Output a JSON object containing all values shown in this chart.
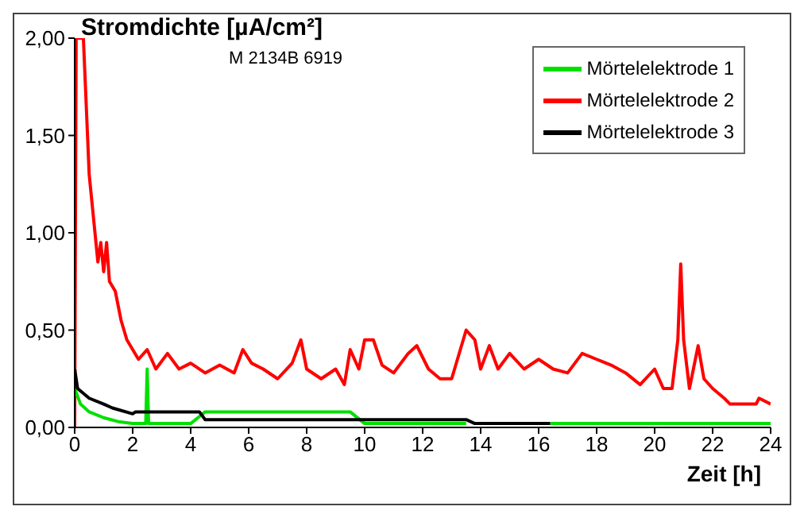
{
  "chart_data": {
    "type": "line",
    "title": "Stromdichte [µA/cm²]",
    "xlabel": "Zeit [h]",
    "annotations": [
      "M 2134B 6919"
    ],
    "xlim": [
      0,
      24
    ],
    "xticks": [
      0,
      2,
      4,
      6,
      8,
      10,
      12,
      14,
      16,
      18,
      20,
      22,
      24
    ],
    "ylim": [
      0,
      2
    ],
    "yticks": [
      {
        "value": 0,
        "label": "0,00"
      },
      {
        "value": 0.5,
        "label": "0,50"
      },
      {
        "value": 1,
        "label": "1,00"
      },
      {
        "value": 1.5,
        "label": "1,50"
      },
      {
        "value": 2,
        "label": "2,00"
      }
    ],
    "grid": false,
    "legend": "top right",
    "marker": "none",
    "line_style": "solid",
    "series": [
      {
        "name": "Mörtelelektrode 1",
        "color": "#00e000",
        "x": [
          0,
          0.2,
          0.5,
          1,
          1.5,
          2,
          2.45,
          2.5,
          2.55,
          4,
          4.5,
          6,
          8,
          9.5,
          10,
          13.5,
          14,
          16.4,
          20,
          24
        ],
        "values": [
          0.2,
          0.12,
          0.08,
          0.05,
          0.03,
          0.02,
          0.02,
          0.3,
          0.02,
          0.02,
          0.08,
          0.08,
          0.08,
          0.08,
          0.02,
          0.02,
          null,
          0.02,
          0.02,
          0.02
        ]
      },
      {
        "name": "Mörtelelektrode 2",
        "color": "#ff0000",
        "x": [
          0,
          0.05,
          0.3,
          0.5,
          0.7,
          0.8,
          0.9,
          1,
          1.1,
          1.2,
          1.4,
          1.6,
          1.8,
          2,
          2.2,
          2.5,
          2.8,
          3.2,
          3.6,
          4,
          4.5,
          5,
          5.5,
          5.8,
          6.1,
          6.5,
          7,
          7.5,
          7.8,
          8,
          8.5,
          9,
          9.3,
          9.5,
          9.8,
          10,
          10.3,
          10.6,
          11,
          11.5,
          11.8,
          12.2,
          12.6,
          13,
          13.5,
          13.8,
          14,
          14.3,
          14.6,
          15,
          15.5,
          16,
          16.5,
          17,
          17.5,
          18,
          18.5,
          19,
          19.5,
          20,
          20.3,
          20.6,
          20.8,
          20.9,
          21,
          21.2,
          21.5,
          21.7,
          22,
          22.4,
          22.6,
          23.5,
          23.6,
          24
        ],
        "values": [
          0,
          2,
          2,
          1.3,
          1,
          0.85,
          0.95,
          0.8,
          0.95,
          0.75,
          0.7,
          0.55,
          0.45,
          0.4,
          0.35,
          0.4,
          0.3,
          0.38,
          0.3,
          0.33,
          0.28,
          0.32,
          0.28,
          0.4,
          0.33,
          0.3,
          0.25,
          0.33,
          0.45,
          0.3,
          0.25,
          0.3,
          0.22,
          0.4,
          0.3,
          0.45,
          0.45,
          0.32,
          0.28,
          0.38,
          0.42,
          0.3,
          0.25,
          0.25,
          0.5,
          0.45,
          0.3,
          0.42,
          0.3,
          0.38,
          0.3,
          0.35,
          0.3,
          0.28,
          0.38,
          0.35,
          0.32,
          0.28,
          0.22,
          0.3,
          0.2,
          0.2,
          0.45,
          0.84,
          0.45,
          0.2,
          0.42,
          0.25,
          0.2,
          0.15,
          0.12,
          0.12,
          0.15,
          0.12
        ]
      },
      {
        "name": "Mörtelelektrode 3",
        "color": "#000000",
        "x": [
          0,
          0.1,
          0.5,
          1,
          1.3,
          2,
          2.1,
          4.3,
          4.5,
          13.5,
          13.8,
          16.4
        ],
        "values": [
          0.3,
          0.2,
          0.15,
          0.12,
          0.1,
          0.07,
          0.08,
          0.08,
          0.04,
          0.04,
          0.02,
          0.02
        ]
      }
    ]
  }
}
